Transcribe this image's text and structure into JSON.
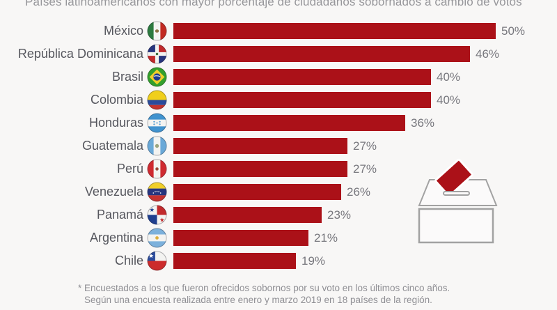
{
  "title": "Países latinoamericanos con mayor porcentaje de ciudadanos sobornados a cambio de votos",
  "chart_data": {
    "type": "bar",
    "orientation": "horizontal",
    "title": "Países latinoamericanos con mayor porcentaje de ciudadanos sobornados a cambio de votos",
    "categories": [
      "México",
      "República Dominicana",
      "Brasil",
      "Colombia",
      "Honduras",
      "Guatemala",
      "Perú",
      "Venezuela",
      "Panamá",
      "Argentina",
      "Chile"
    ],
    "values": [
      50,
      46,
      40,
      40,
      36,
      27,
      27,
      26,
      23,
      21,
      19
    ],
    "value_labels": [
      "50%",
      "46%",
      "40%",
      "40%",
      "36%",
      "27%",
      "27%",
      "26%",
      "23%",
      "21%",
      "19%"
    ],
    "unit": "%",
    "xlim": [
      0,
      50
    ],
    "grid": false,
    "legend": "none",
    "bar_color": "#ab1118",
    "flags": [
      "mexico",
      "dominican-republic",
      "brazil",
      "colombia",
      "honduras",
      "guatemala",
      "peru",
      "venezuela",
      "panama",
      "argentina",
      "chile"
    ]
  },
  "footnote": {
    "line1": "* Encuestados a los que fueron ofrecidos sobornos por su voto en los últimos cinco años.",
    "line2": "Según una encuesta realizada entre enero y marzo 2019 en 18 países de la región."
  },
  "illustration": {
    "name": "ballot-box",
    "paper_color": "#ab1118",
    "outline_color": "#a2a2a2"
  },
  "colors": {
    "background": "#f8f7f6",
    "bar": "#ab1118",
    "label_text": "#56575e",
    "value_text": "#77777d",
    "title_text": "#97979b",
    "footnote_text": "#8f8f94"
  }
}
